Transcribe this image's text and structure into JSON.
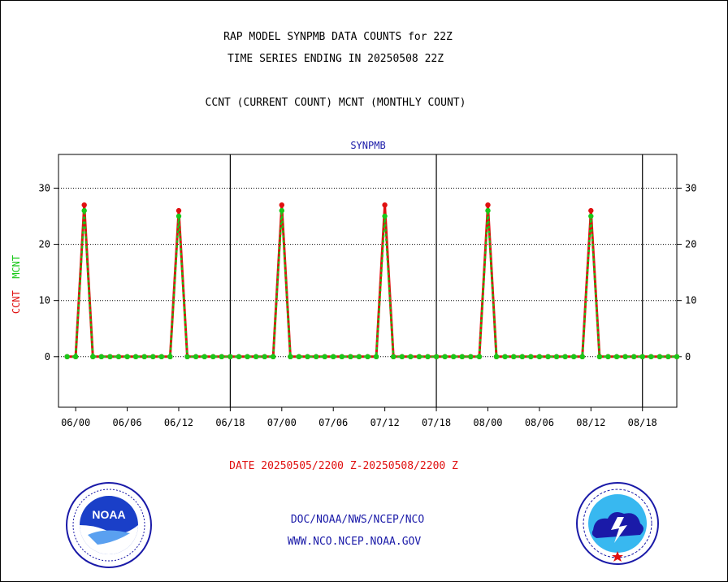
{
  "header": {
    "title_line1": "RAP MODEL SYNPMB DATA COUNTS for 22Z",
    "title_line2": "TIME SERIES ENDING IN 20250508 22Z",
    "subtitle": "CCNT (CURRENT COUNT) MCNT (MONTHLY COUNT)"
  },
  "footer": {
    "date_range": "DATE 20250505/2200 Z-20250508/2200 Z",
    "org_line1": "DOC/NOAA/NWS/NCEP/NCO",
    "org_line2": "WWW.NCO.NCEP.NOAA.GOV"
  },
  "logos": {
    "left": {
      "icon": "noaa-logo-icon",
      "text": "NOAA"
    },
    "right": {
      "icon": "nws-logo-icon"
    }
  },
  "colors": {
    "ccnt": "#e01010",
    "mcnt": "#18c818",
    "title_blue": "#1a1aa8"
  },
  "chart_data": {
    "type": "line",
    "title": "SYNPMB",
    "ylabel_parts": [
      "CCNT",
      "MCNT"
    ],
    "xlim": [
      -2,
      70
    ],
    "ylim": [
      -9,
      36
    ],
    "yticks": [
      0,
      10,
      20,
      30
    ],
    "ytick_labels": [
      "0",
      "10",
      "20",
      "30"
    ],
    "xticks": [
      0,
      6,
      12,
      18,
      24,
      30,
      36,
      42,
      48,
      54,
      60,
      66
    ],
    "xtick_labels": [
      "06/00",
      "06/06",
      "06/12",
      "06/18",
      "07/00",
      "07/06",
      "07/12",
      "07/18",
      "08/00",
      "08/06",
      "08/12",
      "08/18"
    ],
    "day_boundaries": [
      18,
      42,
      66
    ],
    "grid": "horizontal dotted",
    "x_start": -1,
    "x_step": 1,
    "series": [
      {
        "name": "CCNT",
        "values": [
          0,
          0,
          27,
          0,
          0,
          0,
          0,
          0,
          0,
          0,
          0,
          0,
          0,
          26,
          0,
          0,
          0,
          0,
          0,
          0,
          0,
          0,
          0,
          0,
          0,
          27,
          0,
          0,
          0,
          0,
          0,
          0,
          0,
          0,
          0,
          0,
          0,
          27,
          0,
          0,
          0,
          0,
          0,
          0,
          0,
          0,
          0,
          0,
          0,
          27,
          0,
          0,
          0,
          0,
          0,
          0,
          0,
          0,
          0,
          0,
          0,
          26,
          0,
          0,
          0,
          0,
          0,
          0,
          0,
          0,
          0,
          0
        ]
      },
      {
        "name": "MCNT",
        "values": [
          0,
          0,
          26,
          0,
          0,
          0,
          0,
          0,
          0,
          0,
          0,
          0,
          0,
          25,
          0,
          0,
          0,
          0,
          0,
          0,
          0,
          0,
          0,
          0,
          0,
          26,
          0,
          0,
          0,
          0,
          0,
          0,
          0,
          0,
          0,
          0,
          0,
          25,
          0,
          0,
          0,
          0,
          0,
          0,
          0,
          0,
          0,
          0,
          0,
          26,
          0,
          0,
          0,
          0,
          0,
          0,
          0,
          0,
          0,
          0,
          0,
          25,
          0,
          0,
          0,
          0,
          0,
          0,
          0,
          0,
          0,
          0
        ]
      }
    ]
  }
}
